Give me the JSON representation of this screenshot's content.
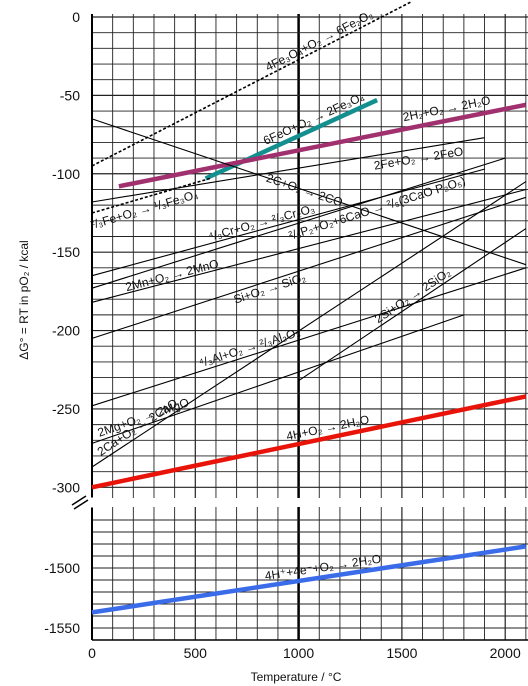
{
  "chart_data": {
    "type": "line",
    "xlabel": "Temperature / °C",
    "ylabel": "ΔG° = RT in pO₂ / kcal",
    "x_ticks": [
      0,
      500,
      1000,
      1500,
      2000
    ],
    "y_ticks_upper": [
      0,
      -50,
      -100,
      -150,
      -200,
      -250,
      -300
    ],
    "y_ticks_lower": [
      -1500,
      -1550
    ],
    "xlim": [
      -50,
      2100
    ],
    "ylim_upper": [
      0,
      -305
    ],
    "ylim_lower": [
      -1450,
      -1560
    ],
    "broken_y_axis": true,
    "grid": true,
    "series": [
      {
        "name": "4Fe₃O₄+O₂ → 6Fe₂O₃",
        "style": "dashed",
        "color": "#000000",
        "x": [
          0,
          1550
        ],
        "y": [
          -95,
          10
        ]
      },
      {
        "name": "6FeO+O₂ → 2Fe₃O₄",
        "color": "#138f8f",
        "thick": true,
        "x": [
          550,
          1380
        ],
        "y": [
          -103,
          -53
        ]
      },
      {
        "name": "2H₂+O₂ → 2H₂O",
        "color": "#a0306e",
        "thick": true,
        "x": [
          130,
          2100
        ],
        "y": [
          -108,
          -56
        ]
      },
      {
        "name": "2Fe+O₂ → 2FeO",
        "color": "#000000",
        "x": [
          0,
          1900
        ],
        "y": [
          -118,
          -77
        ]
      },
      {
        "name": "²/₃Fe+O₂ → ¹/₃Fe₃O₄",
        "style": "dashed",
        "color": "#000000",
        "x": [
          0,
          570
        ],
        "y": [
          -125,
          -103
        ]
      },
      {
        "name": "2C+O₂ → 2CO",
        "color": "#000000",
        "x": [
          0,
          2100
        ],
        "y": [
          -65,
          -158
        ]
      },
      {
        "name": "⁴/₃Cr+O₂ → ²/₃Cr₂O₃",
        "color": "#000000",
        "x": [
          0,
          1900
        ],
        "y": [
          -165,
          -97
        ]
      },
      {
        "name": "²/₅P₂+O₂+6CaO → ²/₅(3CaO P₂O₅)",
        "color": "#000000",
        "x": [
          0,
          2000
        ],
        "y": [
          -173,
          -90
        ]
      },
      {
        "name": "2Mn+O₂ → 2MnO",
        "color": "#000000",
        "x": [
          0,
          2100
        ],
        "y": [
          -182,
          -110
        ]
      },
      {
        "name": "Si+O₂ → SiO₂",
        "color": "#000000",
        "x": [
          0,
          2100
        ],
        "y": [
          -205,
          -115
        ]
      },
      {
        "name": "2Si+O₂ → 2SiO₂",
        "color": "#000000",
        "x": [
          1000,
          2100
        ],
        "y": [
          -232,
          -135
        ]
      },
      {
        "name": "⁴/₃Al+O₂ → ²/₃Al₂O₃",
        "color": "#000000",
        "x": [
          0,
          2100
        ],
        "y": [
          -248,
          -160
        ]
      },
      {
        "name": "2Mg+O₂ → 2MgO",
        "color": "#000000",
        "x": [
          0,
          1800
        ],
        "y": [
          -272,
          -190
        ]
      },
      {
        "name": "2Ca+O₂ → 2CaO",
        "color": "#000000",
        "x": [
          0,
          2100
        ],
        "y": [
          -287,
          -105
        ]
      },
      {
        "name": "4H+O₂ → 2H₂O",
        "color": "#e8140a",
        "thick": true,
        "x": [
          0,
          2100
        ],
        "y": [
          -300,
          -242
        ]
      },
      {
        "name": "4H⁺+4e⁻+O₂ → 2H₂O",
        "color": "#3a6be8",
        "thick": true,
        "lower": true,
        "x": [
          0,
          2100
        ],
        "y": [
          -1537,
          -1482
        ]
      }
    ]
  }
}
